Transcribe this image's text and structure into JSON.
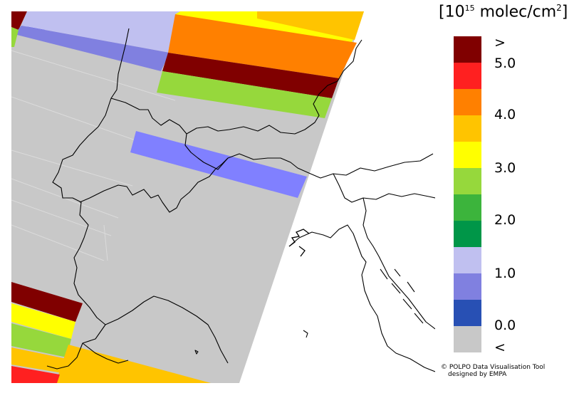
{
  "colorbar": {
    "title_prefix": "[10",
    "title_exponent": "15",
    "title_unit": " molec/cm",
    "title_unit_exponent": "2",
    "title_suffix": "]",
    "segments": [
      {
        "color": "#800000"
      },
      {
        "color": "#ff2020"
      },
      {
        "color": "#ff8000"
      },
      {
        "color": "#ffc400"
      },
      {
        "color": "#ffff00"
      },
      {
        "color": "#96d83c"
      },
      {
        "color": "#3cb43c"
      },
      {
        "color": "#009648"
      },
      {
        "color": "#c0c0f0"
      },
      {
        "color": "#8080e0"
      },
      {
        "color": "#2850b4"
      },
      {
        "color": "#c8c8c8"
      }
    ],
    "labels": [
      ">",
      "5.0",
      "4.0",
      "3.0",
      "2.0",
      "1.0",
      "0.0",
      "<"
    ]
  },
  "credit": {
    "line1": "© POLPO Data Visualisation Tool",
    "line2": "designed by EMPA"
  },
  "map": {
    "background_color": "#ffffff",
    "no_data_color": "#c8c8c8",
    "boundary_color": "#000000"
  }
}
